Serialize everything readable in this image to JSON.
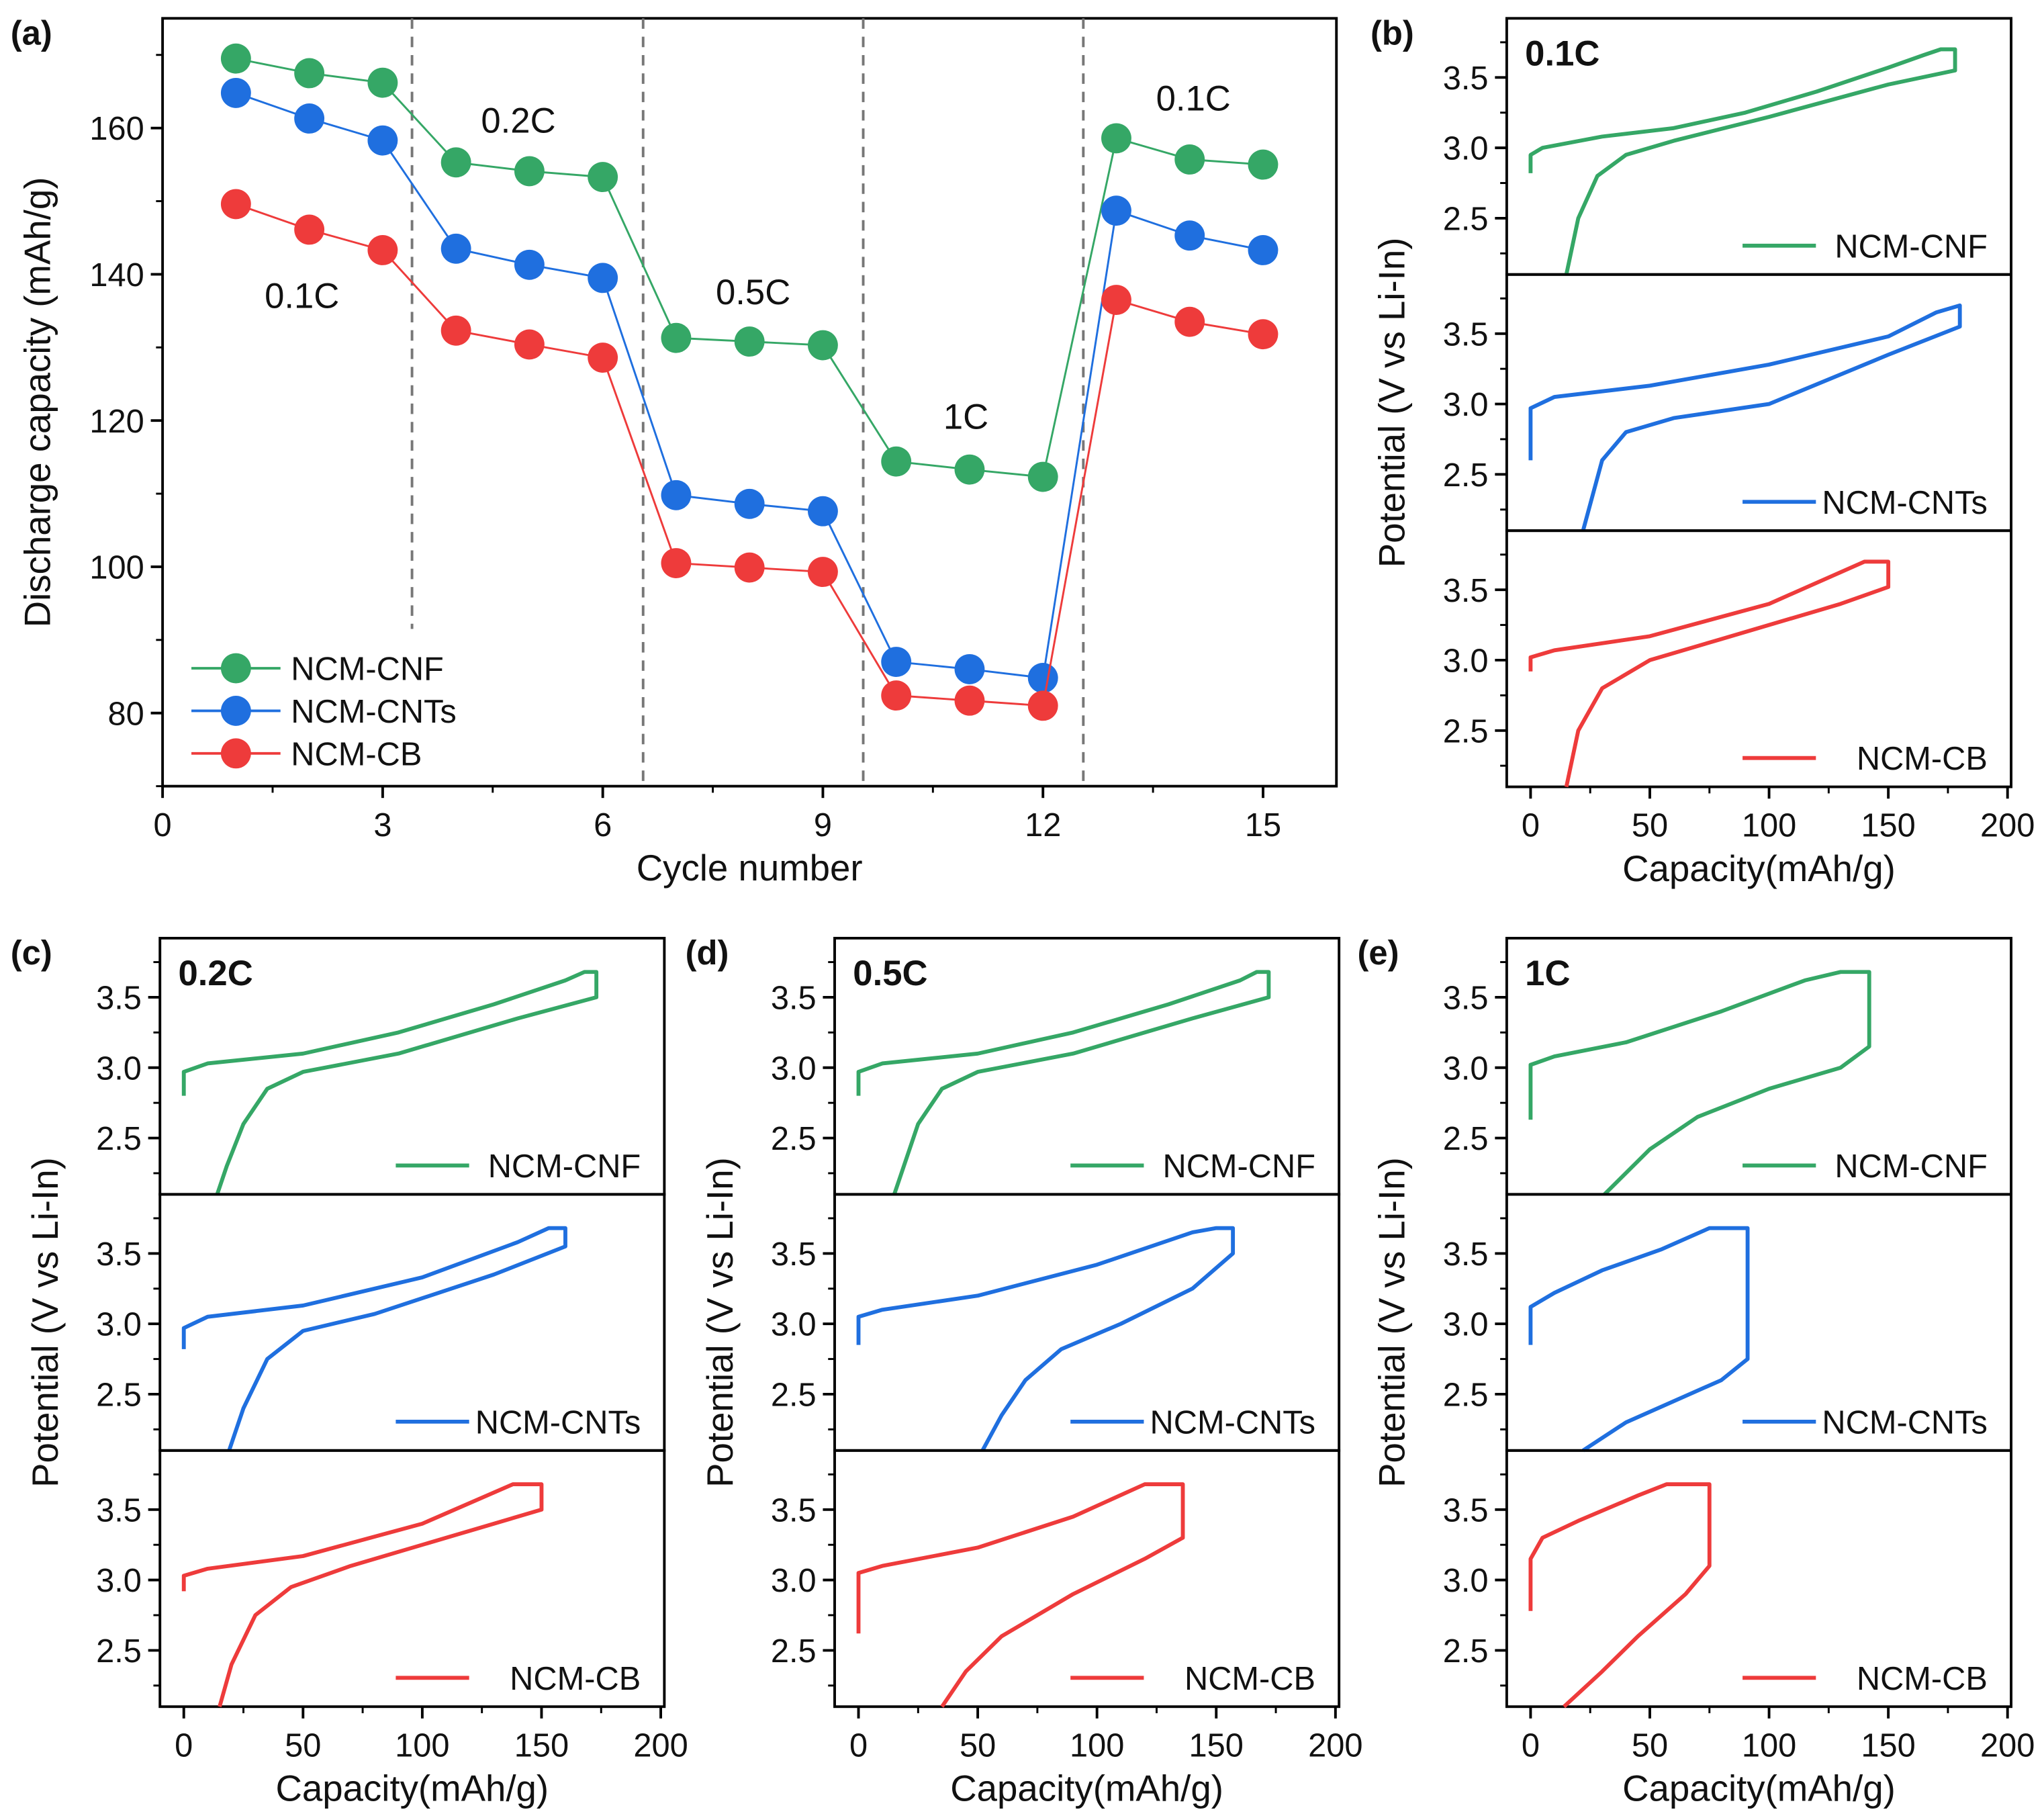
{
  "colors": {
    "NCM-CNF": "#35a766",
    "NCM-CNTs": "#1f6fdf",
    "NCM-CB": "#ee3b3b",
    "boundary": "#777777"
  },
  "chart_data": [
    {
      "panel": "(a)",
      "type": "line",
      "markers": "circle",
      "xlabel": "Cycle number",
      "ylabel": "Discharge capacity (mAh/g)",
      "xlim": [
        0,
        16
      ],
      "ylim": [
        70,
        175
      ],
      "xticks": [
        "0",
        "3",
        "6",
        "9",
        "12",
        "15"
      ],
      "yticks": [
        "80",
        "100",
        "120",
        "140",
        "160"
      ],
      "grid": false,
      "legend": "bottom-left",
      "x": [
        1,
        2,
        3,
        4,
        5,
        6,
        7,
        8,
        9,
        10,
        11,
        12,
        13,
        14,
        15
      ],
      "series": [
        {
          "name": "NCM-CNF",
          "values": [
            169.5,
            167.5,
            166.2,
            155.3,
            154.1,
            153.3,
            131.3,
            130.8,
            130.3,
            114.4,
            113.3,
            112.3,
            158.6,
            155.7,
            155.0
          ]
        },
        {
          "name": "NCM-CNTs",
          "values": [
            164.8,
            161.3,
            158.3,
            143.5,
            141.3,
            139.5,
            109.8,
            108.6,
            107.6,
            87.0,
            86.0,
            84.8,
            148.7,
            145.3,
            143.3
          ]
        },
        {
          "name": "NCM-CB",
          "values": [
            149.6,
            146.1,
            143.3,
            132.3,
            130.4,
            128.6,
            100.5,
            99.9,
            99.3,
            82.4,
            81.7,
            81.0,
            136.5,
            133.5,
            131.8
          ]
        }
      ],
      "rate_boundaries": [
        3.4,
        6.55,
        9.55,
        12.55
      ],
      "annotations": [
        {
          "text": "0.1C",
          "x": 1.9,
          "y": 137
        },
        {
          "text": "0.2C",
          "x": 4.85,
          "y": 161
        },
        {
          "text": "0.5C",
          "x": 8.05,
          "y": 137.5
        },
        {
          "text": "1C",
          "x": 10.95,
          "y": 120.5
        },
        {
          "text": "0.1C",
          "x": 14.05,
          "y": 164
        }
      ]
    },
    {
      "panel": "(b)",
      "type": "line",
      "rate": "0.1C",
      "xlabel": "Capacity(mAh/g)",
      "ylabel": "Potential (V vs Li-In)",
      "xlim": [
        -10,
        201.5
      ],
      "ylim": [
        2.1,
        3.92
      ],
      "xticks": [
        "0",
        "50",
        "100",
        "150",
        "200"
      ],
      "yticks": [
        "2.5",
        "3.0",
        "3.5"
      ],
      "legend": "bottom-right",
      "subplots": [
        {
          "name": "NCM-CNF",
          "charge": [
            [
              0,
              2.82
            ],
            [
              0,
              2.95
            ],
            [
              5,
              3.0
            ],
            [
              30,
              3.08
            ],
            [
              60,
              3.14
            ],
            [
              90,
              3.25
            ],
            [
              120,
              3.4
            ],
            [
              150,
              3.57
            ],
            [
              165,
              3.66
            ],
            [
              172,
              3.7
            ],
            [
              178,
              3.7
            ]
          ],
          "discharge": [
            [
              178,
              3.7
            ],
            [
              178,
              3.55
            ],
            [
              150,
              3.45
            ],
            [
              100,
              3.22
            ],
            [
              60,
              3.05
            ],
            [
              40,
              2.95
            ],
            [
              28,
              2.8
            ],
            [
              20,
              2.5
            ],
            [
              15,
              2.1
            ]
          ]
        },
        {
          "name": "NCM-CNTs",
          "charge": [
            [
              0,
              2.6
            ],
            [
              0,
              2.97
            ],
            [
              10,
              3.05
            ],
            [
              50,
              3.13
            ],
            [
              100,
              3.28
            ],
            [
              150,
              3.48
            ],
            [
              170,
              3.65
            ],
            [
              180,
              3.7
            ]
          ],
          "discharge": [
            [
              180,
              3.7
            ],
            [
              180,
              3.55
            ],
            [
              150,
              3.35
            ],
            [
              100,
              3.0
            ],
            [
              60,
              2.9
            ],
            [
              40,
              2.8
            ],
            [
              30,
              2.6
            ],
            [
              22,
              2.1
            ]
          ]
        },
        {
          "name": "NCM-CB",
          "charge": [
            [
              0,
              2.92
            ],
            [
              0,
              3.02
            ],
            [
              10,
              3.07
            ],
            [
              50,
              3.17
            ],
            [
              100,
              3.4
            ],
            [
              140,
              3.7
            ],
            [
              150,
              3.7
            ]
          ],
          "discharge": [
            [
              150,
              3.7
            ],
            [
              150,
              3.52
            ],
            [
              130,
              3.4
            ],
            [
              80,
              3.15
            ],
            [
              50,
              3.0
            ],
            [
              30,
              2.8
            ],
            [
              20,
              2.5
            ],
            [
              15,
              2.1
            ]
          ]
        }
      ]
    },
    {
      "panel": "(c)",
      "type": "line",
      "rate": "0.2C",
      "xlabel": "Capacity(mAh/g)",
      "ylabel": "Potential (V vs Li-In)",
      "xlim": [
        -10,
        201.5
      ],
      "ylim": [
        2.1,
        3.92
      ],
      "xticks": [
        "0",
        "50",
        "100",
        "150",
        "200"
      ],
      "yticks": [
        "2.5",
        "3.0",
        "3.5"
      ],
      "legend": "bottom-right",
      "subplots": [
        {
          "name": "NCM-CNF",
          "charge": [
            [
              0,
              2.8
            ],
            [
              0,
              2.97
            ],
            [
              10,
              3.03
            ],
            [
              50,
              3.1
            ],
            [
              90,
              3.25
            ],
            [
              130,
              3.45
            ],
            [
              160,
              3.62
            ],
            [
              168,
              3.68
            ],
            [
              173,
              3.68
            ]
          ],
          "discharge": [
            [
              173,
              3.68
            ],
            [
              173,
              3.5
            ],
            [
              140,
              3.35
            ],
            [
              90,
              3.1
            ],
            [
              50,
              2.97
            ],
            [
              35,
              2.85
            ],
            [
              25,
              2.6
            ],
            [
              18,
              2.3
            ],
            [
              14,
              2.1
            ]
          ]
        },
        {
          "name": "NCM-CNTs",
          "charge": [
            [
              0,
              2.82
            ],
            [
              0,
              2.97
            ],
            [
              10,
              3.05
            ],
            [
              50,
              3.13
            ],
            [
              100,
              3.33
            ],
            [
              140,
              3.58
            ],
            [
              153,
              3.68
            ],
            [
              160,
              3.68
            ]
          ],
          "discharge": [
            [
              160,
              3.68
            ],
            [
              160,
              3.55
            ],
            [
              130,
              3.35
            ],
            [
              80,
              3.07
            ],
            [
              50,
              2.95
            ],
            [
              35,
              2.75
            ],
            [
              25,
              2.4
            ],
            [
              19,
              2.1
            ]
          ]
        },
        {
          "name": "NCM-CB",
          "charge": [
            [
              0,
              2.92
            ],
            [
              0,
              3.03
            ],
            [
              10,
              3.08
            ],
            [
              50,
              3.17
            ],
            [
              100,
              3.4
            ],
            [
              138,
              3.68
            ],
            [
              150,
              3.68
            ]
          ],
          "discharge": [
            [
              150,
              3.68
            ],
            [
              150,
              3.5
            ],
            [
              120,
              3.35
            ],
            [
              70,
              3.1
            ],
            [
              45,
              2.95
            ],
            [
              30,
              2.75
            ],
            [
              20,
              2.4
            ],
            [
              15,
              2.1
            ]
          ]
        }
      ]
    },
    {
      "panel": "(d)",
      "type": "line",
      "rate": "0.5C",
      "xlabel": "Capacity(mAh/g)",
      "ylabel": "Potential (V vs Li-In)",
      "xlim": [
        -10,
        201.5
      ],
      "ylim": [
        2.1,
        3.92
      ],
      "xticks": [
        "0",
        "50",
        "100",
        "150",
        "200"
      ],
      "yticks": [
        "2.5",
        "3.0",
        "3.5"
      ],
      "legend": "bottom-right",
      "subplots": [
        {
          "name": "NCM-CNF",
          "charge": [
            [
              0,
              2.8
            ],
            [
              0,
              2.97
            ],
            [
              10,
              3.03
            ],
            [
              50,
              3.1
            ],
            [
              90,
              3.25
            ],
            [
              130,
              3.45
            ],
            [
              160,
              3.62
            ],
            [
              167,
              3.68
            ],
            [
              172,
              3.68
            ]
          ],
          "discharge": [
            [
              172,
              3.68
            ],
            [
              172,
              3.5
            ],
            [
              140,
              3.35
            ],
            [
              90,
              3.1
            ],
            [
              50,
              2.97
            ],
            [
              35,
              2.85
            ],
            [
              25,
              2.6
            ],
            [
              19,
              2.3
            ],
            [
              15,
              2.1
            ]
          ]
        },
        {
          "name": "NCM-CNTs",
          "charge": [
            [
              0,
              2.85
            ],
            [
              0,
              3.05
            ],
            [
              10,
              3.1
            ],
            [
              50,
              3.2
            ],
            [
              100,
              3.42
            ],
            [
              140,
              3.65
            ],
            [
              150,
              3.68
            ],
            [
              157,
              3.68
            ]
          ],
          "discharge": [
            [
              157,
              3.68
            ],
            [
              157,
              3.5
            ],
            [
              140,
              3.25
            ],
            [
              110,
              3.0
            ],
            [
              85,
              2.82
            ],
            [
              70,
              2.6
            ],
            [
              60,
              2.35
            ],
            [
              52,
              2.1
            ]
          ]
        },
        {
          "name": "NCM-CB",
          "charge": [
            [
              0,
              2.62
            ],
            [
              0,
              3.05
            ],
            [
              10,
              3.1
            ],
            [
              50,
              3.23
            ],
            [
              90,
              3.45
            ],
            [
              120,
              3.68
            ],
            [
              136,
              3.68
            ]
          ],
          "discharge": [
            [
              136,
              3.68
            ],
            [
              136,
              3.3
            ],
            [
              120,
              3.15
            ],
            [
              90,
              2.9
            ],
            [
              60,
              2.6
            ],
            [
              45,
              2.35
            ],
            [
              35,
              2.1
            ]
          ]
        }
      ]
    },
    {
      "panel": "(e)",
      "type": "line",
      "rate": "1C",
      "xlabel": "Capacity(mAh/g)",
      "ylabel": "Potential (V vs Li-In)",
      "xlim": [
        -10,
        201.5
      ],
      "ylim": [
        2.1,
        3.92
      ],
      "xticks": [
        "0",
        "50",
        "100",
        "150",
        "200"
      ],
      "yticks": [
        "2.5",
        "3.0",
        "3.5"
      ],
      "legend": "bottom-right",
      "subplots": [
        {
          "name": "NCM-CNF",
          "charge": [
            [
              0,
              2.63
            ],
            [
              0,
              3.02
            ],
            [
              10,
              3.08
            ],
            [
              40,
              3.18
            ],
            [
              80,
              3.4
            ],
            [
              115,
              3.62
            ],
            [
              130,
              3.68
            ],
            [
              142,
              3.68
            ]
          ],
          "discharge": [
            [
              142,
              3.68
            ],
            [
              142,
              3.15
            ],
            [
              130,
              3.0
            ],
            [
              100,
              2.85
            ],
            [
              70,
              2.65
            ],
            [
              50,
              2.42
            ],
            [
              31,
              2.1
            ]
          ]
        },
        {
          "name": "NCM-CNTs",
          "charge": [
            [
              0,
              2.85
            ],
            [
              0,
              3.12
            ],
            [
              10,
              3.22
            ],
            [
              30,
              3.38
            ],
            [
              55,
              3.53
            ],
            [
              75,
              3.68
            ],
            [
              91,
              3.68
            ]
          ],
          "discharge": [
            [
              91,
              3.68
            ],
            [
              91,
              2.75
            ],
            [
              80,
              2.6
            ],
            [
              60,
              2.45
            ],
            [
              40,
              2.3
            ],
            [
              22,
              2.1
            ]
          ]
        },
        {
          "name": "NCM-CB",
          "charge": [
            [
              0,
              2.78
            ],
            [
              0,
              3.15
            ],
            [
              5,
              3.3
            ],
            [
              20,
              3.42
            ],
            [
              45,
              3.6
            ],
            [
              57,
              3.68
            ],
            [
              75,
              3.68
            ]
          ],
          "discharge": [
            [
              75,
              3.68
            ],
            [
              75,
              3.1
            ],
            [
              65,
              2.9
            ],
            [
              45,
              2.6
            ],
            [
              30,
              2.35
            ],
            [
              14,
              2.1
            ]
          ]
        }
      ]
    }
  ]
}
